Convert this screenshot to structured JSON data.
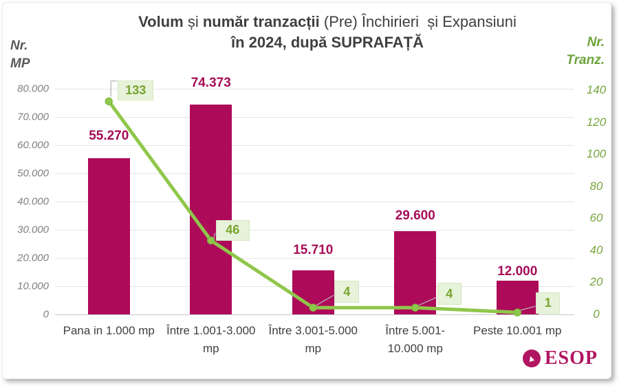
{
  "title": {
    "line1_parts": [
      {
        "text": "Volum",
        "bold": true
      },
      {
        "text": " și ",
        "bold": false
      },
      {
        "text": "număr tranzacții",
        "bold": true
      },
      {
        "text": " (Pre) Închirieri  și Expansiuni",
        "bold": false
      }
    ],
    "line2": "în 2024, după SUPRAFAȚĂ"
  },
  "left_axis_unit": {
    "line1": "Nr.",
    "line2": "MP"
  },
  "right_axis_unit": {
    "line1": "Nr.",
    "line2": "Tranz."
  },
  "logo": {
    "text": "ESOP",
    "arrow_icon": "up-arrow-in-circle"
  },
  "colors": {
    "bar": "#ad0a5a",
    "bar_label": "#a50d58",
    "line": "#8fc74a",
    "line_marker_stroke": "#7db33e",
    "line_label_text": "#76a52f",
    "line_label_bg": "#e7f2da",
    "leader": "#b9b2b6",
    "left_axis_text": "#7f7f7f",
    "right_axis_text": "#77a53c",
    "title_text": "#3f3f3f",
    "logo": "#b11662"
  },
  "chart_data": {
    "type": "bar",
    "subtype": "combo bar + line, dual axis",
    "title": "Volum și număr tranzacții (Pre) Închirieri și Expansiuni în 2024, după SUPRAFAȚĂ",
    "categories": [
      "Pana in 1.000 mp",
      "Între 1.001-3.000 mp",
      "Între 3.001-5.000 mp",
      "Între 5.001-10.000 mp",
      "Peste 10.001 mp"
    ],
    "categories_display": [
      [
        "Pana in 1.000 mp"
      ],
      [
        "Între 1.001-3.000",
        "mp"
      ],
      [
        "Între 3.001-5.000",
        "mp"
      ],
      [
        "Între 5.001-",
        "10.000 mp"
      ],
      [
        "Peste 10.001 mp"
      ]
    ],
    "series": [
      {
        "name": "Volum (Nr. MP)",
        "type": "bar",
        "axis": "left",
        "values": [
          55270,
          74373,
          15710,
          29600,
          12000
        ],
        "labels": [
          "55.270",
          "74.373",
          "15.710",
          "29.600",
          "12.000"
        ]
      },
      {
        "name": "Număr tranzacții (Nr. Tranz.)",
        "type": "line",
        "axis": "right",
        "values": [
          133,
          46,
          4,
          4,
          1
        ],
        "labels": [
          "133",
          "46",
          "4",
          "4",
          "1"
        ]
      }
    ],
    "left_axis": {
      "label": "Nr. MP",
      "min": 0,
      "max": 80000,
      "step": 10000,
      "tick_labels": [
        "0",
        "10.000",
        "20.000",
        "30.000",
        "40.000",
        "50.000",
        "60.000",
        "70.000",
        "80.000"
      ]
    },
    "right_axis": {
      "label": "Nr. Tranz.",
      "min": 0,
      "max": 140,
      "step": 20,
      "tick_labels": [
        "0",
        "20",
        "40",
        "60",
        "80",
        "100",
        "120",
        "140"
      ]
    },
    "grid": true,
    "legend": false
  }
}
